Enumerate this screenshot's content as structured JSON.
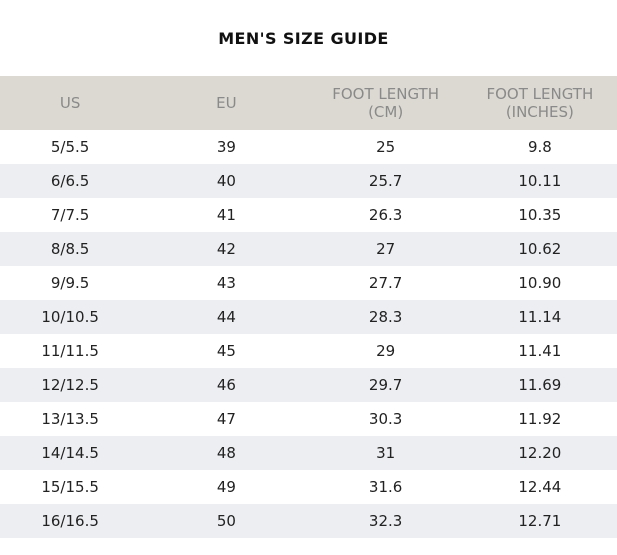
{
  "title": "MEN'S SIZE GUIDE",
  "colors": {
    "header_bg": "#dcd9d2",
    "header_text": "#8a8a8a",
    "alt_row_bg": "#eceef2",
    "row_bg": "#ffffff",
    "text": "#222222"
  },
  "table": {
    "headers": [
      {
        "line1": "US",
        "line2": ""
      },
      {
        "line1": "EU",
        "line2": ""
      },
      {
        "line1": "FOOT LENGTH",
        "line2": "(CM)"
      },
      {
        "line1": "FOOT LENGTH",
        "line2": "(INCHES)"
      }
    ],
    "rows": [
      [
        "5/5.5",
        "39",
        "25",
        "9.8"
      ],
      [
        "6/6.5",
        "40",
        "25.7",
        "10.11"
      ],
      [
        "7/7.5",
        "41",
        "26.3",
        "10.35"
      ],
      [
        "8/8.5",
        "42",
        "27",
        "10.62"
      ],
      [
        "9/9.5",
        "43",
        "27.7",
        "10.90"
      ],
      [
        "10/10.5",
        "44",
        "28.3",
        "11.14"
      ],
      [
        "11/11.5",
        "45",
        "29",
        "11.41"
      ],
      [
        "12/12.5",
        "46",
        "29.7",
        "11.69"
      ],
      [
        "13/13.5",
        "47",
        "30.3",
        "11.92"
      ],
      [
        "14/14.5",
        "48",
        "31",
        "12.20"
      ],
      [
        "15/15.5",
        "49",
        "31.6",
        "12.44"
      ],
      [
        "16/16.5",
        "50",
        "32.3",
        "12.71"
      ]
    ]
  }
}
